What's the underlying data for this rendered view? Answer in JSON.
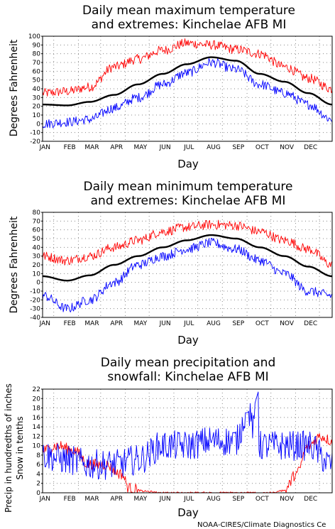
{
  "chart_data": [
    {
      "type": "line",
      "title": "Daily mean maximum temperature",
      "subtitle": "and extremes: Kinchelae AFB MI",
      "xlabel": "Day",
      "ylabel": "Degrees Fahrenheit",
      "ylim": [
        -20,
        100
      ],
      "yticks": [
        -20,
        -10,
        0,
        10,
        20,
        30,
        40,
        50,
        60,
        70,
        80,
        90,
        100
      ],
      "months": [
        "JAN",
        "FEB",
        "MAR",
        "APR",
        "MAY",
        "JUN",
        "JUL",
        "AUG",
        "SEP",
        "OCT",
        "NOV",
        "DEC"
      ],
      "grid": true,
      "series": [
        {
          "name": "max_extreme",
          "color": "#ff0000",
          "monthly": [
            [
              1,
              35
            ],
            [
              32,
              37
            ],
            [
              60,
              42
            ],
            [
              91,
              65
            ],
            [
              121,
              74
            ],
            [
              152,
              84
            ],
            [
              182,
              92
            ],
            [
              213,
              90
            ],
            [
              244,
              85
            ],
            [
              274,
              80
            ],
            [
              305,
              65
            ],
            [
              335,
              52
            ],
            [
              365,
              40
            ]
          ]
        },
        {
          "name": "mean",
          "color": "#000000",
          "monthly": [
            [
              1,
              22
            ],
            [
              32,
              21
            ],
            [
              60,
              25
            ],
            [
              91,
              33
            ],
            [
              121,
              45
            ],
            [
              152,
              57
            ],
            [
              182,
              68
            ],
            [
              213,
              76
            ],
            [
              244,
              72
            ],
            [
              274,
              57
            ],
            [
              305,
              48
            ],
            [
              335,
              35
            ],
            [
              365,
              22
            ]
          ]
        },
        {
          "name": "min_extreme",
          "color": "#0000ff",
          "monthly": [
            [
              1,
              0
            ],
            [
              32,
              2
            ],
            [
              60,
              5
            ],
            [
              91,
              18
            ],
            [
              121,
              30
            ],
            [
              152,
              45
            ],
            [
              182,
              58
            ],
            [
              213,
              70
            ],
            [
              244,
              62
            ],
            [
              274,
              45
            ],
            [
              305,
              35
            ],
            [
              335,
              22
            ],
            [
              365,
              5
            ]
          ]
        }
      ]
    },
    {
      "type": "line",
      "title": "Daily mean minimum temperature",
      "subtitle": "and extremes: Kinchelae AFB MI",
      "xlabel": "Day",
      "ylabel": "Degrees Fahrenheit",
      "ylim": [
        -40,
        80
      ],
      "yticks": [
        -40,
        -30,
        -20,
        -10,
        0,
        10,
        20,
        30,
        40,
        50,
        60,
        70,
        80
      ],
      "months": [
        "JAN",
        "FEB",
        "MAR",
        "APR",
        "MAY",
        "JUN",
        "JUL",
        "AUG",
        "SEP",
        "OCT",
        "NOV",
        "DEC"
      ],
      "grid": true,
      "series": [
        {
          "name": "max_extreme",
          "color": "#ff0000",
          "monthly": [
            [
              1,
              30
            ],
            [
              32,
              25
            ],
            [
              60,
              30
            ],
            [
              91,
              40
            ],
            [
              121,
              48
            ],
            [
              152,
              58
            ],
            [
              182,
              63
            ],
            [
              213,
              66
            ],
            [
              244,
              65
            ],
            [
              274,
              58
            ],
            [
              305,
              48
            ],
            [
              335,
              38
            ],
            [
              365,
              20
            ]
          ]
        },
        {
          "name": "mean",
          "color": "#000000",
          "monthly": [
            [
              1,
              7
            ],
            [
              32,
              2
            ],
            [
              60,
              8
            ],
            [
              91,
              20
            ],
            [
              121,
              30
            ],
            [
              152,
              40
            ],
            [
              182,
              48
            ],
            [
              213,
              54
            ],
            [
              244,
              50
            ],
            [
              274,
              40
            ],
            [
              305,
              30
            ],
            [
              335,
              18
            ],
            [
              365,
              7
            ]
          ]
        },
        {
          "name": "min_extreme",
          "color": "#0000ff",
          "monthly": [
            [
              1,
              -15
            ],
            [
              32,
              -30
            ],
            [
              60,
              -20
            ],
            [
              91,
              0
            ],
            [
              121,
              20
            ],
            [
              152,
              30
            ],
            [
              182,
              38
            ],
            [
              213,
              45
            ],
            [
              244,
              38
            ],
            [
              274,
              25
            ],
            [
              305,
              10
            ],
            [
              335,
              -10
            ],
            [
              365,
              -15
            ]
          ]
        }
      ]
    },
    {
      "type": "line",
      "title": "Daily mean precipitation and",
      "subtitle": "snowfall: Kinchelae AFB MI",
      "xlabel": "Day",
      "ylabel": "Precip in hundredths of inches",
      "ylabel2": "Snow in tenths",
      "ylim": [
        0,
        22
      ],
      "yticks": [
        0,
        2,
        4,
        6,
        8,
        10,
        12,
        14,
        16,
        18,
        20,
        22
      ],
      "months": [
        "JAN",
        "FEB",
        "MAR",
        "APR",
        "MAY",
        "JUN",
        "JUL",
        "AUG",
        "SEP",
        "OCT",
        "NOV",
        "DEC"
      ],
      "grid": true,
      "series": [
        {
          "name": "snow",
          "color": "#ff0000",
          "monthly": [
            [
              1,
              9
            ],
            [
              20,
              10
            ],
            [
              40,
              9
            ],
            [
              60,
              6
            ],
            [
              80,
              6
            ],
            [
              100,
              4
            ],
            [
              110,
              1
            ],
            [
              130,
              0.3
            ],
            [
              150,
              0
            ],
            [
              290,
              0
            ],
            [
              305,
              0.5
            ],
            [
              320,
              4
            ],
            [
              335,
              10
            ],
            [
              350,
              12
            ],
            [
              365,
              11
            ]
          ]
        },
        {
          "name": "precip",
          "color": "#0000ff",
          "monthly": [
            [
              1,
              8
            ],
            [
              32,
              7
            ],
            [
              60,
              6
            ],
            [
              91,
              6
            ],
            [
              121,
              7
            ],
            [
              152,
              10
            ],
            [
              182,
              10
            ],
            [
              213,
              11
            ],
            [
              244,
              11
            ],
            [
              258,
              17
            ],
            [
              274,
              10
            ],
            [
              305,
              10
            ],
            [
              335,
              10
            ],
            [
              365,
              6
            ]
          ]
        }
      ]
    }
  ],
  "credit": "NOAA-CIRES/Climate Diagnostics Ce"
}
